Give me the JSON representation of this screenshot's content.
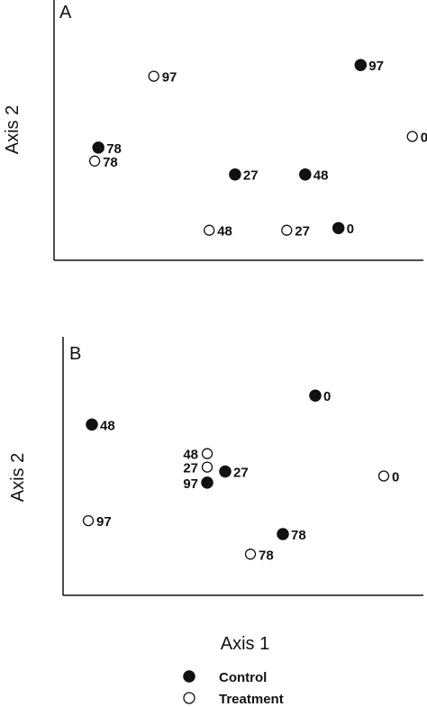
{
  "chart_data": [
    {
      "type": "scatter",
      "panel": "A",
      "ylabel": "Axis 2",
      "xlim": [
        0,
        10
      ],
      "ylim": [
        0,
        10
      ],
      "grid": false,
      "series": [
        {
          "name": "Control",
          "points": [
            {
              "x": 8.3,
              "y": 8.3,
              "label": "97"
            },
            {
              "x": 1.2,
              "y": 4.6,
              "label": "78"
            },
            {
              "x": 4.9,
              "y": 3.4,
              "label": "27"
            },
            {
              "x": 6.8,
              "y": 3.4,
              "label": "48"
            },
            {
              "x": 7.7,
              "y": 1.0,
              "label": "0"
            }
          ]
        },
        {
          "name": "Treatment",
          "points": [
            {
              "x": 2.7,
              "y": 7.8,
              "label": "97"
            },
            {
              "x": 9.7,
              "y": 5.1,
              "label": "0"
            },
            {
              "x": 1.1,
              "y": 4.0,
              "label": "78"
            },
            {
              "x": 6.3,
              "y": 0.9,
              "label": "27"
            },
            {
              "x": 4.2,
              "y": 0.9,
              "label": "48"
            }
          ]
        }
      ]
    },
    {
      "type": "scatter",
      "panel": "B",
      "ylabel": "Axis 2",
      "xlabel": "Axis 1",
      "xlim": [
        0,
        10
      ],
      "ylim": [
        0,
        10
      ],
      "grid": false,
      "series": [
        {
          "name": "Control",
          "points": [
            {
              "x": 7.0,
              "y": 8.5,
              "label": "0"
            },
            {
              "x": 0.8,
              "y": 7.2,
              "label": "48"
            },
            {
              "x": 4.5,
              "y": 5.1,
              "label": "27"
            },
            {
              "x": 4.0,
              "y": 4.6,
              "label": "97"
            },
            {
              "x": 6.1,
              "y": 2.3,
              "label": "78"
            }
          ]
        },
        {
          "name": "Treatment",
          "points": [
            {
              "x": 4.0,
              "y": 5.9,
              "label": "48"
            },
            {
              "x": 4.0,
              "y": 5.3,
              "label": "27"
            },
            {
              "x": 8.9,
              "y": 4.9,
              "label": "0"
            },
            {
              "x": 0.7,
              "y": 2.9,
              "label": "97"
            },
            {
              "x": 5.2,
              "y": 1.4,
              "label": "78"
            }
          ]
        }
      ]
    }
  ],
  "legend": {
    "placement": "bottom",
    "items": [
      {
        "label": "Control",
        "marker": "filled-circle"
      },
      {
        "label": "Treatment",
        "marker": "open-circle"
      }
    ]
  },
  "colors": {
    "ink": "#111111",
    "background": "#ffffff"
  }
}
